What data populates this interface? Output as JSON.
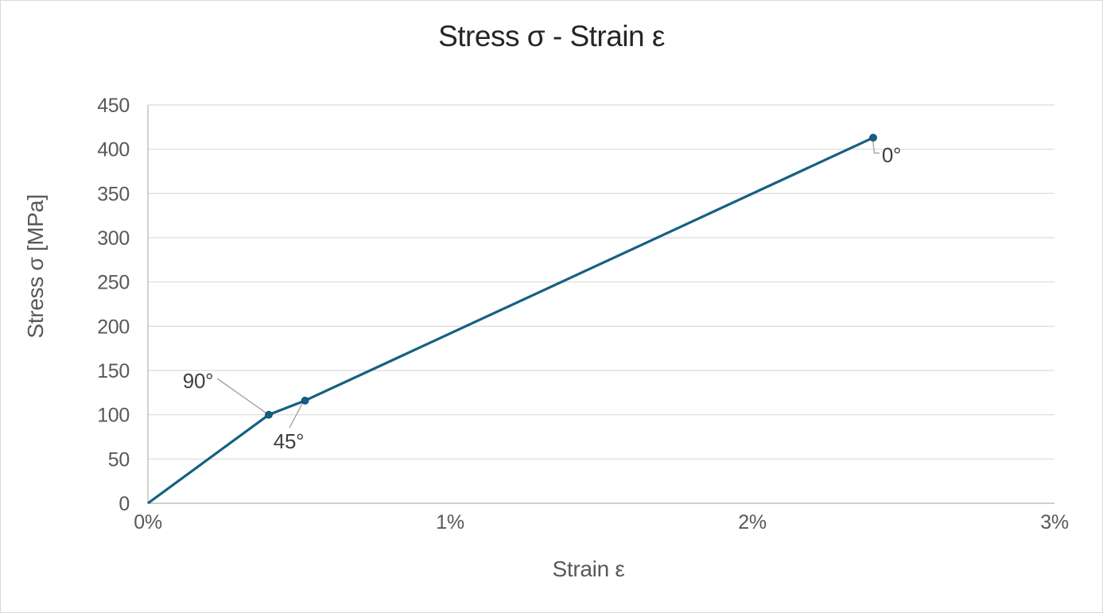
{
  "chart_data": {
    "type": "line",
    "title": "Stress σ - Strain ε",
    "xlabel": "Strain ε",
    "ylabel": "Stress σ [MPa]",
    "xlim": [
      0,
      3
    ],
    "ylim": [
      0,
      450
    ],
    "x_tick_values": [
      0,
      1,
      2,
      3
    ],
    "x_tick_labels": [
      "0%",
      "1%",
      "2%",
      "3%"
    ],
    "y_tick_values": [
      0,
      50,
      100,
      150,
      200,
      250,
      300,
      350,
      400,
      450
    ],
    "y_tick_labels": [
      "0",
      "50",
      "100",
      "150",
      "200",
      "250",
      "300",
      "350",
      "400",
      "450"
    ],
    "grid": "horizontal-only",
    "legend": "none",
    "series": [
      {
        "color": "#156082",
        "points": [
          {
            "strain_pct": 0,
            "stress_mpa": 0
          },
          {
            "strain_pct": 0.4,
            "stress_mpa": 100
          },
          {
            "strain_pct": 0.52,
            "stress_mpa": 116
          },
          {
            "strain_pct": 2.4,
            "stress_mpa": 413
          }
        ]
      }
    ],
    "annotations": [
      {
        "label": "90°",
        "strain_pct": 0.4,
        "stress_mpa": 100
      },
      {
        "label": "45°",
        "strain_pct": 0.52,
        "stress_mpa": 116
      },
      {
        "label": "0°",
        "strain_pct": 2.4,
        "stress_mpa": 413
      }
    ],
    "colors": {
      "background": "#ffffff",
      "frame_border": "#d9d9d9",
      "series": "#156082",
      "marker_edge": "#0f4f6d",
      "gridline": "#d9d9d9",
      "axis_line": "#bfbfbf",
      "tick_label": "#595959",
      "axis_title": "#595959",
      "chart_title": "#262626",
      "data_label": "#404040",
      "leader_line": "#a6a6a6"
    }
  }
}
